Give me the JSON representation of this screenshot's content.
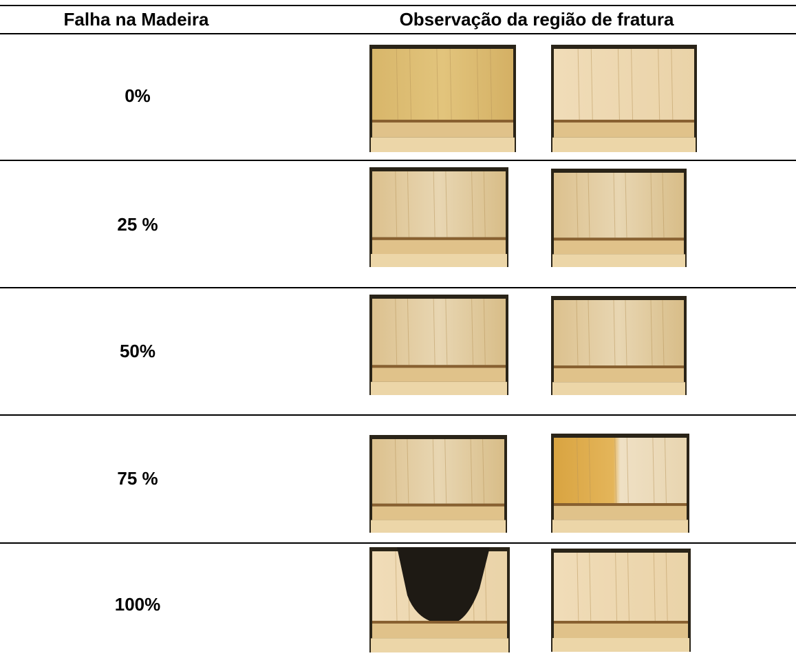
{
  "table": {
    "header": [
      "Falha na Madeira",
      "Observação da região de fratura"
    ],
    "rows": [
      [
        "0%"
      ],
      [
        "25 %"
      ],
      [
        "50%"
      ],
      [
        "75 %"
      ],
      [
        "100%"
      ]
    ]
  }
}
